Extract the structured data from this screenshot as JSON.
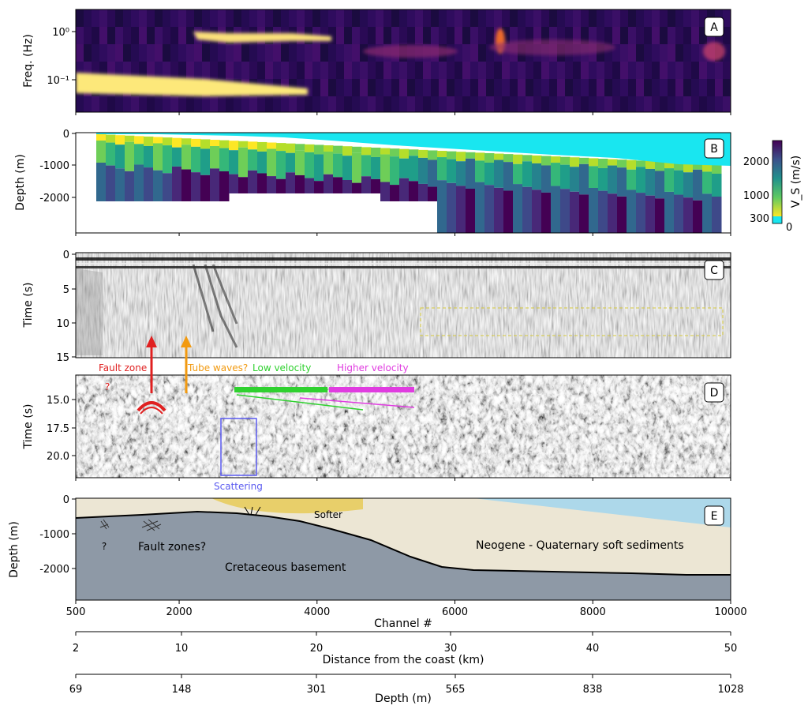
{
  "chart_data": [
    {
      "panel": "A",
      "type": "heatmap",
      "ylabel": "Freq. (Hz)",
      "yscale": "log",
      "yticks": [
        "10⁰",
        "10⁻¹"
      ],
      "colormap": "inferno"
    },
    {
      "panel": "B",
      "type": "heatmap",
      "ylabel": "Depth (m)",
      "yticks": [
        "0",
        "-1000",
        "-2000"
      ],
      "colorbar": {
        "label": "V_S (m/s)",
        "ticks": [
          "2000",
          "1000",
          "300",
          "0"
        ],
        "colormap": "viridis"
      }
    },
    {
      "panel": "C",
      "type": "heatmap",
      "ylabel": "Time (s)",
      "yticks": [
        "0",
        "5",
        "10",
        "15"
      ],
      "ylim": [
        0,
        15
      ],
      "colormap": "gray"
    },
    {
      "panel": "D",
      "type": "heatmap",
      "ylabel": "Time (s)",
      "yticks": [
        "15.0",
        "17.5",
        "20.0"
      ],
      "colormap": "gray",
      "annotations": [
        "Fault zone",
        "?",
        "Tube waves?",
        "Low velocity",
        "Higher velocity",
        "Scattering"
      ]
    },
    {
      "panel": "E",
      "type": "diagram",
      "ylabel": "Depth (m)",
      "yticks": [
        "0",
        "-1000",
        "-2000"
      ],
      "labels": [
        "Softer",
        "?",
        "Fault zones?",
        "Cretaceous basement",
        "Neogene - Quaternary soft sediments"
      ]
    }
  ],
  "axes": {
    "channel": {
      "label": "Channel #",
      "ticks": [
        "500",
        "2000",
        "4000",
        "6000",
        "8000",
        "10000"
      ],
      "range": [
        500,
        10000
      ]
    },
    "distance": {
      "label": "Distance from the coast (km)",
      "ticks": [
        "2",
        "10",
        "20",
        "30",
        "40",
        "50"
      ]
    },
    "depth": {
      "label": "Depth (m)",
      "ticks": [
        "69",
        "148",
        "301",
        "565",
        "838",
        "1028"
      ]
    }
  },
  "colors": {
    "fault_zone": "#e02020",
    "tube_waves": "#f29a10",
    "low_velocity": "#2fd12f",
    "higher_velocity": "#e03ce0",
    "scattering": "#5a5af0",
    "water": "#add8ea",
    "sediments": "#ece6d4",
    "basement": "#8e99a6",
    "softer": "#e8cf6a"
  }
}
